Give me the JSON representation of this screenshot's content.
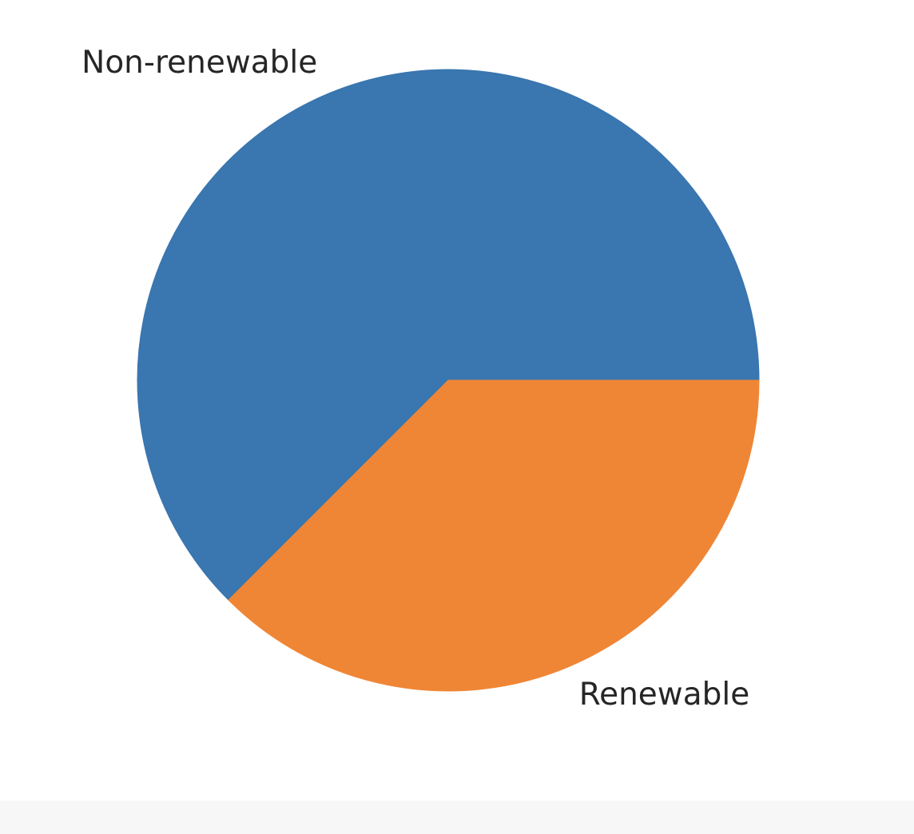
{
  "chart_data": {
    "type": "pie",
    "title": "",
    "start_angle_deg": 0,
    "counterclock": true,
    "slices": [
      {
        "label": "Non-renewable",
        "value": 62.5,
        "color": "#3a76af"
      },
      {
        "label": "Renewable",
        "value": 37.5,
        "color": "#ef8636"
      }
    ],
    "legend": "none"
  }
}
